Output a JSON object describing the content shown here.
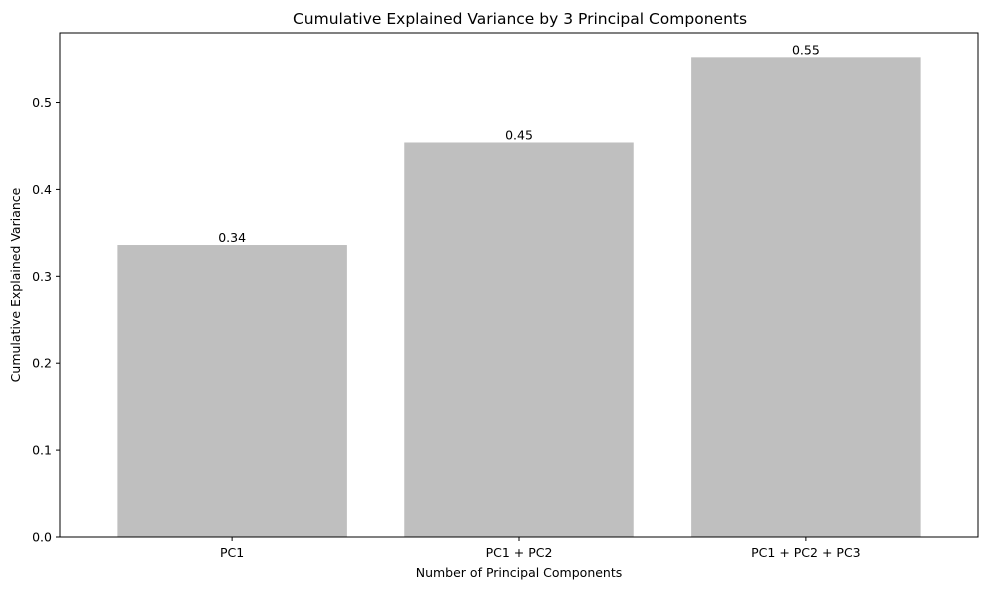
{
  "chart_data": {
    "type": "bar",
    "title": "Cumulative Explained Variance by 3 Principal Components",
    "xlabel": "Number of Principal Components",
    "ylabel": "Cumulative Explained Variance",
    "categories": [
      "PC1",
      "PC1 + PC2",
      "PC1 + PC2 + PC3"
    ],
    "values": [
      0.336,
      0.454,
      0.552
    ],
    "value_labels": [
      "0.34",
      "0.45",
      "0.55"
    ],
    "ylim": [
      0,
      0.58
    ],
    "yticks": [
      0.0,
      0.1,
      0.2,
      0.3,
      0.4,
      0.5
    ],
    "ytick_labels": [
      "0.0",
      "0.1",
      "0.2",
      "0.3",
      "0.4",
      "0.5"
    ],
    "bar_color": "#bfbfbf",
    "grid": false,
    "legend": "none"
  }
}
